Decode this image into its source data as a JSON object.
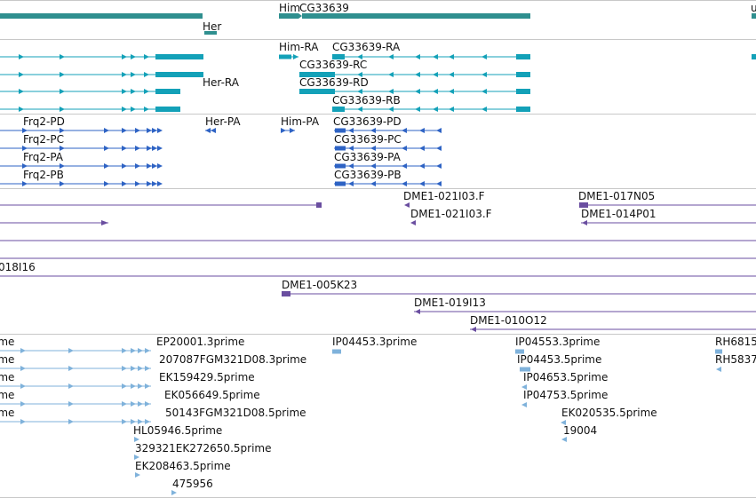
{
  "colors": {
    "gene": "#2f8f8f",
    "transcript_teal": "#13a1b8",
    "transcript_blue": "#2e63c4",
    "clone": "#6a4ea0",
    "est": "#7fb2db",
    "divider": "#c8c8c8"
  },
  "gene_track": {
    "labels": [
      "Her",
      "Him",
      "CG33639",
      "u"
    ]
  },
  "transcript_track": {
    "labels": [
      "Him-RA",
      "CG33639-RA",
      "CG33639-RC",
      "Her-RA",
      "CG33639-RD",
      "CG33639-RB"
    ]
  },
  "protein_track": {
    "labels": [
      "Frq2-PD",
      "Her-PA",
      "Him-PA",
      "CG33639-PD",
      "Frq2-PC",
      "CG33639-PC",
      "Frq2-PA",
      "CG33639-PA",
      "Frq2-PB",
      "CG33639-PB"
    ]
  },
  "clone_track": {
    "labels": [
      "DME1-021I03.F",
      "DME1-017N05",
      "DME1-021I03.F",
      "DME1-014P01",
      "018I16",
      "DME1-005K23",
      "DME1-019I13",
      "DME1-010O12"
    ]
  },
  "est_track": {
    "labels": [
      "ime",
      "EP20001.3prime",
      "IP04453.3prime",
      "IP04553.3prime",
      "RH6815",
      "ime",
      "207087FGM321D08.3prime",
      "IP04453.5prime",
      "RH5837",
      "ime",
      "EK159429.5prime",
      "IP04653.5prime",
      "ime",
      "EK056649.5prime",
      "IP04753.5prime",
      "ime",
      "50143FGM321D08.5prime",
      "EK020535.5prime",
      "HL05946.5prime",
      "19004",
      "329321EK272650.5prime",
      "EK208463.5prime",
      "475956"
    ]
  }
}
